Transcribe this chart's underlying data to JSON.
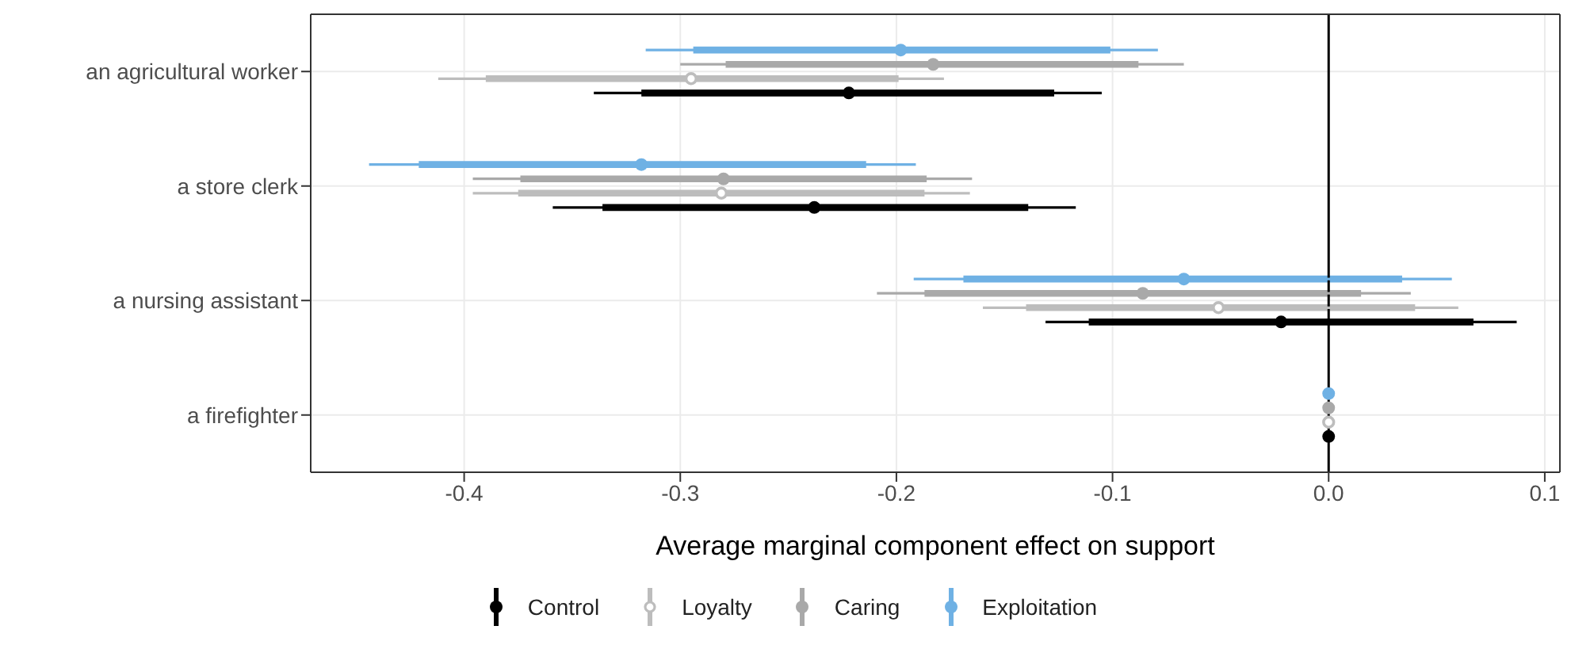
{
  "chart_data": {
    "type": "scatter",
    "orientation": "horizontal",
    "xlabel": "Average marginal component effect on support",
    "categories": [
      "an agricultural worker",
      "a store clerk",
      "a nursing assistant",
      "a firefighter"
    ],
    "xlim": [
      -0.471,
      0.107
    ],
    "xticks": [
      -0.4,
      -0.3,
      -0.2,
      -0.1,
      {
        "value": 0,
        "label": "0.0"
      },
      0.1
    ],
    "grid": true,
    "legend": "bottom",
    "marker": "circle",
    "ref_lines": [
      {
        "axis": "x",
        "value": 0,
        "color": "#000000"
      }
    ],
    "series": [
      {
        "name": "Control",
        "color": "#000000",
        "values": [
          -0.222,
          -0.238,
          -0.022,
          0
        ],
        "errors": [
          [
            -0.34,
            -0.105
          ],
          [
            -0.359,
            -0.117
          ],
          [
            -0.131,
            0.087
          ],
          null
        ]
      },
      {
        "name": "Loyalty",
        "color": "#bdbdbd",
        "marker": "circle-open",
        "values": [
          -0.295,
          -0.281,
          -0.051,
          0
        ],
        "errors": [
          [
            -0.412,
            -0.178
          ],
          [
            -0.396,
            -0.166
          ],
          [
            -0.16,
            0.06
          ],
          null
        ]
      },
      {
        "name": "Caring",
        "color": "#a9a9a9",
        "values": [
          -0.183,
          -0.28,
          -0.086,
          0
        ],
        "errors": [
          [
            -0.3,
            -0.067
          ],
          [
            -0.396,
            -0.165
          ],
          [
            -0.209,
            0.038
          ],
          null
        ]
      },
      {
        "name": "Exploitation",
        "color": "#6fb1e4",
        "values": [
          -0.198,
          -0.318,
          -0.067,
          0
        ],
        "errors": [
          [
            -0.316,
            -0.079
          ],
          [
            -0.444,
            -0.191
          ],
          [
            -0.192,
            0.057
          ],
          null
        ]
      },
      {
        "type": "bar",
        "color": "#000000",
        "base": [
          -0.318,
          -0.336,
          -0.111,
          null
        ],
        "values": [
          0.191,
          0.197,
          0.178,
          null
        ]
      },
      {
        "type": "bar",
        "color": "#bdbdbd",
        "base": [
          -0.39,
          -0.375,
          -0.14,
          null
        ],
        "values": [
          0.191,
          0.188,
          0.18,
          null
        ]
      },
      {
        "type": "bar",
        "color": "#a9a9a9",
        "base": [
          -0.279,
          -0.374,
          -0.187,
          null
        ],
        "values": [
          0.191,
          0.188,
          0.202,
          null
        ]
      },
      {
        "type": "bar",
        "color": "#6fb1e4",
        "base": [
          -0.294,
          -0.421,
          -0.169,
          null
        ],
        "values": [
          0.193,
          0.207,
          0.203,
          null
        ]
      }
    ]
  }
}
